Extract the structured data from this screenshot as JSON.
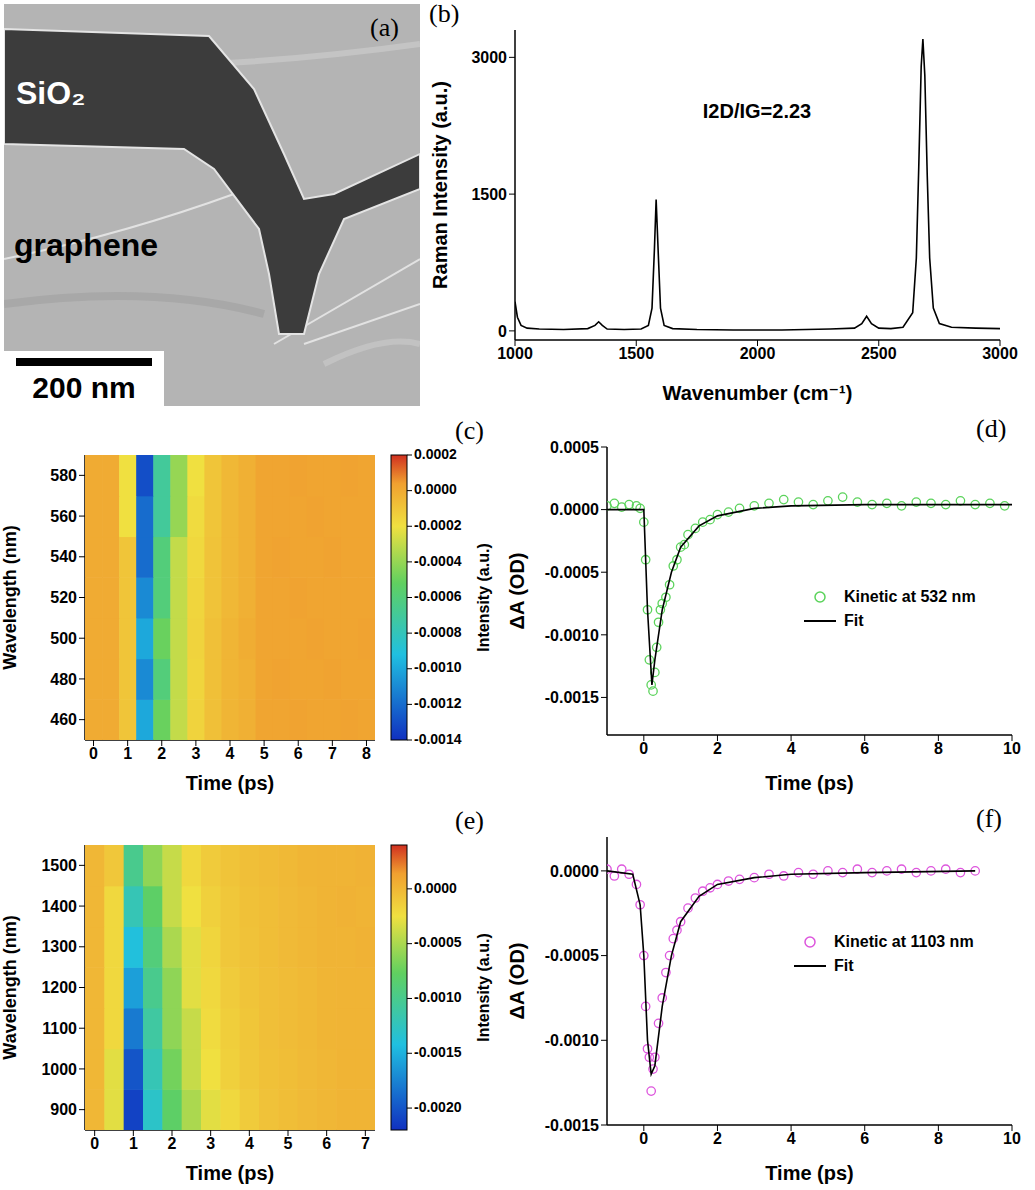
{
  "chart_data": [
    {
      "label": "(a)",
      "type": "image",
      "annotations": [
        "SiO₂",
        "graphene"
      ],
      "scale_bar": "200 nm"
    },
    {
      "label": "(b)",
      "type": "line",
      "color": "#000000",
      "x": [
        1000,
        1010,
        1025,
        1050,
        1100,
        1200,
        1300,
        1330,
        1345,
        1360,
        1380,
        1450,
        1520,
        1550,
        1565,
        1575,
        1582,
        1590,
        1600,
        1615,
        1650,
        1750,
        1900,
        2000,
        2100,
        2200,
        2300,
        2400,
        2430,
        2450,
        2470,
        2500,
        2550,
        2600,
        2640,
        2655,
        2665,
        2675,
        2682,
        2690,
        2700,
        2710,
        2725,
        2750,
        2800,
        2900,
        3000
      ],
      "values": [
        320,
        150,
        60,
        30,
        20,
        15,
        25,
        60,
        100,
        60,
        20,
        15,
        20,
        60,
        250,
        900,
        1440,
        900,
        250,
        60,
        25,
        15,
        10,
        10,
        10,
        15,
        20,
        30,
        80,
        160,
        80,
        30,
        25,
        40,
        200,
        800,
        1800,
        2900,
        3200,
        2800,
        1700,
        800,
        250,
        80,
        40,
        30,
        25
      ],
      "xlim": [
        1000,
        3000
      ],
      "xticks": [
        1000,
        1500,
        2000,
        2500,
        3000
      ],
      "ylim": [
        -100,
        3300
      ],
      "yticks": [
        0,
        1500,
        3000
      ],
      "x_label": "Wavenumber (cm⁻¹)",
      "y_label": "Raman Intensity (a.u.)",
      "annotation": "I2D/IG=2.23"
    },
    {
      "label": "(c)",
      "type": "heatmap",
      "x": [
        0,
        0.5,
        1,
        1.5,
        2,
        2.5,
        3,
        3.5,
        4,
        4.5,
        5,
        5.5,
        6,
        6.5,
        7,
        7.5,
        8
      ],
      "y": [
        460,
        480,
        500,
        520,
        540,
        560,
        580
      ],
      "cells": [
        [
          0,
          0,
          -0.0001,
          -0.001,
          -0.0005,
          -0.0003,
          -0.00015,
          -8e-05,
          -4e-05,
          -2e-05,
          2e-05,
          2e-05,
          3e-05,
          2e-05,
          2e-05,
          3e-05,
          2e-05
        ],
        [
          0,
          0,
          -0.0001,
          -0.0011,
          -0.0006,
          -0.0003,
          -0.00016,
          -8e-05,
          -4e-05,
          -2e-05,
          2e-05,
          3e-05,
          2e-05,
          2e-05,
          3e-05,
          2e-05,
          2e-05
        ],
        [
          0,
          0,
          -0.0001,
          -0.001,
          -0.0005,
          -0.0003,
          -0.00015,
          -8e-05,
          -4e-05,
          -1e-05,
          2e-05,
          2e-05,
          2e-05,
          3e-05,
          2e-05,
          2e-05,
          3e-05
        ],
        [
          0,
          0,
          -0.0001,
          -0.0011,
          -0.0006,
          -0.0003,
          -0.00016,
          -9e-05,
          -5e-05,
          -2e-05,
          2e-05,
          2e-05,
          3e-05,
          2e-05,
          2e-05,
          2e-05,
          2e-05
        ],
        [
          0,
          0,
          -0.0001,
          -0.0012,
          -0.0006,
          -0.0003,
          -0.00017,
          -9e-05,
          -5e-05,
          -2e-05,
          2e-05,
          3e-05,
          2e-05,
          2e-05,
          3e-05,
          2e-05,
          2e-05
        ],
        [
          0,
          0,
          -0.0002,
          -0.0012,
          -0.0007,
          -0.0004,
          -0.00018,
          -0.0001,
          -5e-05,
          -2e-05,
          2e-05,
          2e-05,
          2e-05,
          3e-05,
          2e-05,
          2e-05,
          2e-05
        ],
        [
          0,
          0,
          -0.0002,
          -0.0013,
          -0.0007,
          -0.0004,
          -0.0002,
          -0.0001,
          -5e-05,
          -2e-05,
          2e-05,
          2e-05,
          3e-05,
          2e-05,
          2e-05,
          3e-05,
          2e-05
        ]
      ],
      "xlim": [
        -0.25,
        8.25
      ],
      "xticks": [
        0,
        1,
        2,
        3,
        4,
        5,
        6,
        7,
        8
      ],
      "ylim": [
        450,
        590
      ],
      "yticks": [
        460,
        480,
        500,
        520,
        540,
        560,
        580
      ],
      "x_label": "Time (ps)",
      "y_label": "Wavelength (nm)",
      "colorbar": {
        "range": [
          -0.0014,
          0.0002
        ],
        "ticks": [
          0.0002,
          {
            "value": 0,
            "label": "0.0000"
          },
          -0.0002,
          -0.0004,
          -0.0006,
          -0.0008,
          {
            "value": -0.001,
            "label": "-0.0010"
          },
          -0.0012,
          -0.0014
        ],
        "label": "Intensity (a.u.)"
      }
    },
    {
      "label": "(d)",
      "type": "scatter",
      "legend": "right",
      "series": [
        {
          "name": "Kinetic at 532 nm",
          "type": "scatter",
          "marker": "open_circle",
          "color": "#5bd35b",
          "x": [
            -1,
            -0.8,
            -0.6,
            -0.4,
            -0.2,
            -0.1,
            0,
            0.05,
            0.1,
            0.15,
            0.2,
            0.25,
            0.3,
            0.35,
            0.4,
            0.45,
            0.5,
            0.6,
            0.7,
            0.8,
            0.9,
            1,
            1.1,
            1.2,
            1.4,
            1.6,
            1.8,
            2,
            2.3,
            2.6,
            3,
            3.4,
            3.8,
            4.2,
            4.6,
            5,
            5.4,
            5.8,
            6.2,
            6.6,
            7,
            7.4,
            7.8,
            8.2,
            8.6,
            9,
            9.4,
            9.8
          ],
          "values": [
            3e-05,
            5e-05,
            2e-05,
            4e-05,
            3e-05,
            1e-05,
            -0.0001,
            -0.0004,
            -0.0008,
            -0.0012,
            -0.0014,
            -0.00145,
            -0.0013,
            -0.0011,
            -0.0009,
            -0.0008,
            -0.00075,
            -0.0007,
            -0.0006,
            -0.00045,
            -0.0004,
            -0.0003,
            -0.00028,
            -0.0002,
            -0.00015,
            -0.0001,
            -8e-05,
            -4e-05,
            -2e-05,
            1e-05,
            3e-05,
            5e-05,
            8e-05,
            6e-05,
            4e-05,
            7e-05,
            0.0001,
            6e-05,
            4e-05,
            5e-05,
            3e-05,
            6e-05,
            5e-05,
            4e-05,
            7e-05,
            4e-05,
            5e-05,
            3e-05
          ]
        },
        {
          "name": "Fit",
          "type": "line",
          "color": "#000000",
          "x": [
            -1,
            0,
            0.1,
            0.22,
            0.3,
            0.5,
            0.75,
            1,
            1.5,
            2,
            3,
            4,
            6,
            8,
            10
          ],
          "values": [
            0,
            0,
            -0.0008,
            -0.0014,
            -0.0012,
            -0.0008,
            -0.0005,
            -0.0003,
            -0.00013,
            -5e-05,
            1e-05,
            3e-05,
            4e-05,
            4e-05,
            4e-05
          ]
        }
      ],
      "xlim": [
        -1,
        10
      ],
      "xticks": [
        0,
        2,
        4,
        6,
        8,
        10
      ],
      "ylim": [
        -0.0018,
        0.0005
      ],
      "yticks": [
        0.0005,
        {
          "value": 0,
          "label": "0.0000"
        },
        -0.0005,
        {
          "value": -0.001,
          "label": "-0.0010"
        },
        -0.0015
      ],
      "x_label": "Time (ps)",
      "y_label": "ΔA (OD)"
    },
    {
      "label": "(e)",
      "type": "heatmap",
      "x": [
        0,
        0.5,
        1,
        1.5,
        2,
        2.5,
        3,
        3.5,
        4,
        4.5,
        5,
        5.5,
        6,
        6.5,
        7
      ],
      "y": [
        900,
        1000,
        1100,
        1200,
        1300,
        1400,
        1500
      ],
      "cells": [
        [
          0,
          -0.0003,
          -0.0021,
          -0.0013,
          -0.0008,
          -0.0005,
          -0.0003,
          -0.0002,
          -0.00012,
          -7e-05,
          -4e-05,
          -2e-05,
          0,
          2e-05,
          2e-05
        ],
        [
          0,
          -0.0003,
          -0.002,
          -0.0012,
          -0.0007,
          -0.0004,
          -0.00025,
          -0.00015,
          -0.0001,
          -6e-05,
          -4e-05,
          -2e-05,
          0,
          2e-05,
          2e-05
        ],
        [
          0,
          -0.0002,
          -0.0018,
          -0.0011,
          -0.0006,
          -0.0004,
          -0.00022,
          -0.00014,
          -9e-05,
          -5e-05,
          -3e-05,
          -1e-05,
          1e-05,
          2e-05,
          2e-05
        ],
        [
          0,
          -0.0002,
          -0.0016,
          -0.001,
          -0.0006,
          -0.0003,
          -0.0002,
          -0.00012,
          -8e-05,
          -5e-05,
          -3e-05,
          -1e-05,
          1e-05,
          2e-05,
          2e-05
        ],
        [
          0,
          -0.0002,
          -0.0014,
          -0.0009,
          -0.0005,
          -0.0003,
          -0.00018,
          -0.0001,
          -7e-05,
          -4e-05,
          -2e-05,
          0,
          2e-05,
          2e-05,
          3e-05
        ],
        [
          0,
          -0.0002,
          -0.0012,
          -0.0008,
          -0.0004,
          -0.00025,
          -0.00015,
          -0.0001,
          -6e-05,
          -4e-05,
          -2e-05,
          0,
          2e-05,
          3e-05,
          2e-05
        ],
        [
          0,
          -0.0001,
          -0.001,
          -0.0006,
          -0.0004,
          -0.0002,
          -0.00012,
          -8e-05,
          -5e-05,
          -3e-05,
          -1e-05,
          1e-05,
          2e-05,
          2e-05,
          3e-05
        ]
      ],
      "xlim": [
        -0.25,
        7.25
      ],
      "xticks": [
        0,
        1,
        2,
        3,
        4,
        5,
        6,
        7
      ],
      "ylim": [
        850,
        1550
      ],
      "yticks": [
        900,
        1000,
        1100,
        1200,
        1300,
        1400,
        1500
      ],
      "x_label": "Time (ps)",
      "y_label": "Wavelength (nm)",
      "colorbar": {
        "range": [
          -0.0022,
          0.0004
        ],
        "ticks": [
          {
            "value": 0,
            "label": "0.0000"
          },
          -0.0005,
          {
            "value": -0.001,
            "label": "-0.0010"
          },
          -0.0015,
          {
            "value": -0.002,
            "label": "-0.0020"
          }
        ],
        "label": "Intensity (a.u.)"
      }
    },
    {
      "label": "(f)",
      "type": "scatter",
      "legend": "right",
      "series": [
        {
          "name": "Kinetic at 1103 nm",
          "type": "scatter",
          "marker": "open_circle",
          "color": "#dd55dd",
          "x": [
            -1,
            -0.8,
            -0.6,
            -0.4,
            -0.2,
            -0.1,
            0,
            0.05,
            0.1,
            0.15,
            0.2,
            0.25,
            0.3,
            0.4,
            0.5,
            0.6,
            0.7,
            0.8,
            0.9,
            1,
            1.2,
            1.4,
            1.6,
            1.8,
            2,
            2.3,
            2.6,
            3,
            3.4,
            3.8,
            4.2,
            4.6,
            5,
            5.4,
            5.8,
            6.2,
            6.6,
            7,
            7.4,
            7.8,
            8.2,
            8.6,
            9
          ],
          "values": [
            1e-05,
            -3e-05,
            1e-05,
            -2e-05,
            -8e-05,
            -0.0002,
            -0.0005,
            -0.0008,
            -0.00105,
            -0.0011,
            -0.0013,
            -0.00117,
            -0.0011,
            -0.0009,
            -0.00075,
            -0.0006,
            -0.0005,
            -0.0004,
            -0.00035,
            -0.0003,
            -0.00022,
            -0.00016,
            -0.00012,
            -0.0001,
            -8e-05,
            -6e-05,
            -5e-05,
            -4e-05,
            -2e-05,
            -3e-05,
            -1e-05,
            -2e-05,
            0,
            -1e-05,
            1e-05,
            -1e-05,
            0,
            1e-05,
            -1e-05,
            0,
            1e-05,
            -1e-05,
            0
          ]
        },
        {
          "name": "Fit",
          "type": "line",
          "color": "#000000",
          "x": [
            -1,
            -0.3,
            -0.1,
            0,
            0.1,
            0.2,
            0.3,
            0.5,
            0.75,
            1,
            1.5,
            2,
            3,
            4,
            6,
            9
          ],
          "values": [
            0,
            -2e-05,
            -0.0002,
            -0.0005,
            -0.001,
            -0.0012,
            -0.00115,
            -0.0008,
            -0.0005,
            -0.0003,
            -0.00015,
            -8e-05,
            -4e-05,
            -2e-05,
            -1e-05,
            0
          ]
        }
      ],
      "xlim": [
        -1,
        10
      ],
      "xticks": [
        0,
        2,
        4,
        6,
        8,
        10
      ],
      "ylim": [
        -0.0015,
        0.0002
      ],
      "yticks": [
        {
          "value": 0,
          "label": "0.0000"
        },
        -0.0005,
        {
          "value": -0.001,
          "label": "-0.0010"
        },
        -0.0015
      ],
      "x_label": "Time (ps)",
      "y_label": "ΔA (OD)"
    }
  ]
}
